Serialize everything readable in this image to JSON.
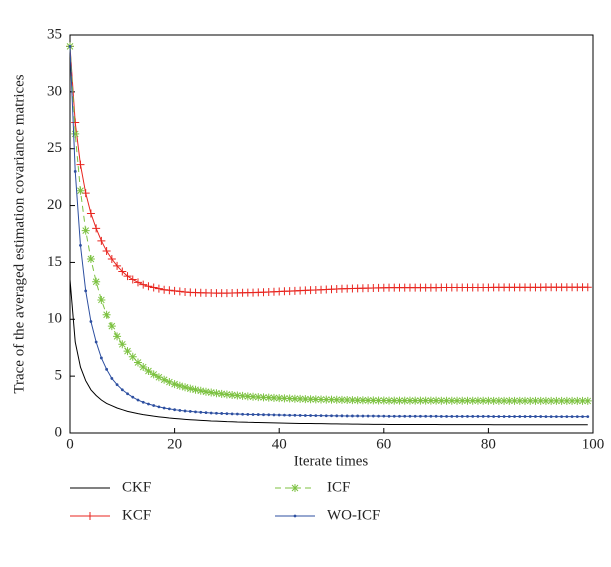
{
  "chart_data": {
    "type": "line",
    "x_label": "Iterate times",
    "y_label": "Trace of the averaged estimation covariance matrices",
    "xlim": [
      0,
      100
    ],
    "xticks": [
      0,
      20,
      40,
      60,
      80,
      100
    ],
    "ylim": [
      0,
      35
    ],
    "yticks": [
      0,
      5,
      10,
      15,
      20,
      25,
      30,
      35
    ],
    "legend": "bottom",
    "x": [
      0,
      1,
      2,
      3,
      4,
      5,
      6,
      7,
      8,
      9,
      10,
      11,
      12,
      13,
      14,
      15,
      16,
      17,
      18,
      19,
      20,
      21,
      22,
      23,
      24,
      25,
      26,
      27,
      28,
      29,
      30,
      31,
      32,
      33,
      34,
      35,
      36,
      37,
      38,
      39,
      40,
      41,
      42,
      43,
      44,
      45,
      46,
      47,
      48,
      49,
      50,
      51,
      52,
      53,
      54,
      55,
      56,
      57,
      58,
      59,
      60,
      61,
      62,
      63,
      64,
      65,
      66,
      67,
      68,
      69,
      70,
      71,
      72,
      73,
      74,
      75,
      76,
      77,
      78,
      79,
      80,
      81,
      82,
      83,
      84,
      85,
      86,
      87,
      88,
      89,
      90,
      91,
      92,
      93,
      94,
      95,
      96,
      97,
      98,
      99
    ],
    "series": [
      {
        "name": "CKF",
        "color": "#000000",
        "line_style": "solid",
        "marker": "none",
        "values": [
          13.5,
          8.0,
          5.8,
          4.6,
          3.8,
          3.3,
          2.9,
          2.6,
          2.4,
          2.2,
          2.05,
          1.9,
          1.8,
          1.7,
          1.62,
          1.55,
          1.48,
          1.42,
          1.37,
          1.32,
          1.28,
          1.24,
          1.2,
          1.17,
          1.14,
          1.11,
          1.09,
          1.06,
          1.04,
          1.02,
          1.0,
          0.99,
          0.97,
          0.96,
          0.94,
          0.93,
          0.92,
          0.91,
          0.9,
          0.89,
          0.88,
          0.87,
          0.86,
          0.85,
          0.84,
          0.84,
          0.83,
          0.82,
          0.82,
          0.81,
          0.8,
          0.8,
          0.79,
          0.79,
          0.78,
          0.78,
          0.77,
          0.77,
          0.76,
          0.76,
          0.76,
          0.75,
          0.75,
          0.75,
          0.75,
          0.75,
          0.75,
          0.75,
          0.75,
          0.75,
          0.75,
          0.74,
          0.74,
          0.74,
          0.74,
          0.74,
          0.74,
          0.74,
          0.74,
          0.74,
          0.74,
          0.73,
          0.73,
          0.73,
          0.73,
          0.73,
          0.73,
          0.73,
          0.73,
          0.73,
          0.73,
          0.72,
          0.72,
          0.72,
          0.72,
          0.72,
          0.72,
          0.72,
          0.72,
          0.72
        ]
      },
      {
        "name": "KCF",
        "color": "#e8251f",
        "line_style": "solid",
        "marker": "plus",
        "values": [
          34,
          27.3,
          23.6,
          21.1,
          19.3,
          18.0,
          16.9,
          16.0,
          15.3,
          14.7,
          14.2,
          13.8,
          13.5,
          13.25,
          13.05,
          12.9,
          12.8,
          12.7,
          12.6,
          12.55,
          12.5,
          12.45,
          12.4,
          12.37,
          12.35,
          12.33,
          12.32,
          12.31,
          12.3,
          12.3,
          12.3,
          12.31,
          12.32,
          12.33,
          12.34,
          12.35,
          12.37,
          12.38,
          12.4,
          12.42,
          12.44,
          12.46,
          12.48,
          12.5,
          12.52,
          12.54,
          12.56,
          12.58,
          12.6,
          12.62,
          12.64,
          12.66,
          12.68,
          12.7,
          12.71,
          12.72,
          12.73,
          12.74,
          12.75,
          12.76,
          12.77,
          12.78,
          12.78,
          12.78,
          12.78,
          12.78,
          12.78,
          12.78,
          12.78,
          12.78,
          12.78,
          12.8,
          12.8,
          12.8,
          12.8,
          12.8,
          12.8,
          12.8,
          12.8,
          12.8,
          12.8,
          12.81,
          12.81,
          12.81,
          12.81,
          12.81,
          12.81,
          12.81,
          12.81,
          12.81,
          12.81,
          12.82,
          12.82,
          12.82,
          12.82,
          12.82,
          12.82,
          12.82,
          12.82,
          12.82
        ]
      },
      {
        "name": "ICF",
        "color": "#7dc242",
        "line_style": "dashed",
        "marker": "asterisk",
        "values": [
          34,
          26.3,
          21.3,
          17.8,
          15.3,
          13.3,
          11.7,
          10.4,
          9.4,
          8.5,
          7.8,
          7.2,
          6.7,
          6.2,
          5.8,
          5.45,
          5.15,
          4.9,
          4.68,
          4.48,
          4.3,
          4.15,
          4.02,
          3.9,
          3.8,
          3.71,
          3.63,
          3.56,
          3.5,
          3.44,
          3.39,
          3.34,
          3.3,
          3.26,
          3.22,
          3.19,
          3.16,
          3.13,
          3.11,
          3.09,
          3.07,
          3.05,
          3.03,
          3.01,
          3.0,
          2.98,
          2.97,
          2.96,
          2.95,
          2.94,
          2.93,
          2.92,
          2.91,
          2.9,
          2.89,
          2.88,
          2.88,
          2.87,
          2.87,
          2.86,
          2.86,
          2.85,
          2.85,
          2.85,
          2.85,
          2.85,
          2.85,
          2.85,
          2.85,
          2.85,
          2.85,
          2.84,
          2.84,
          2.84,
          2.84,
          2.84,
          2.84,
          2.84,
          2.84,
          2.84,
          2.84,
          2.83,
          2.83,
          2.83,
          2.83,
          2.83,
          2.83,
          2.83,
          2.83,
          2.83,
          2.83,
          2.82,
          2.82,
          2.82,
          2.82,
          2.82,
          2.82,
          2.82,
          2.82,
          2.82
        ]
      },
      {
        "name": "WO-ICF",
        "color": "#2d4fa0",
        "line_style": "solid",
        "marker": "dot",
        "values": [
          34,
          23.0,
          16.5,
          12.5,
          9.8,
          8.0,
          6.6,
          5.6,
          4.8,
          4.25,
          3.8,
          3.45,
          3.15,
          2.9,
          2.7,
          2.55,
          2.42,
          2.3,
          2.2,
          2.12,
          2.05,
          1.99,
          1.94,
          1.9,
          1.86,
          1.82,
          1.79,
          1.76,
          1.74,
          1.72,
          1.7,
          1.68,
          1.67,
          1.65,
          1.64,
          1.63,
          1.62,
          1.61,
          1.6,
          1.59,
          1.58,
          1.57,
          1.56,
          1.56,
          1.55,
          1.54,
          1.54,
          1.53,
          1.53,
          1.52,
          1.52,
          1.51,
          1.51,
          1.5,
          1.5,
          1.5,
          1.49,
          1.49,
          1.49,
          1.48,
          1.48,
          1.47,
          1.47,
          1.47,
          1.47,
          1.47,
          1.47,
          1.47,
          1.47,
          1.47,
          1.47,
          1.46,
          1.46,
          1.46,
          1.46,
          1.46,
          1.46,
          1.46,
          1.46,
          1.46,
          1.46,
          1.45,
          1.45,
          1.45,
          1.45,
          1.45,
          1.45,
          1.45,
          1.45,
          1.45,
          1.45,
          1.44,
          1.44,
          1.44,
          1.44,
          1.44,
          1.44,
          1.44,
          1.44,
          1.44
        ]
      }
    ]
  }
}
